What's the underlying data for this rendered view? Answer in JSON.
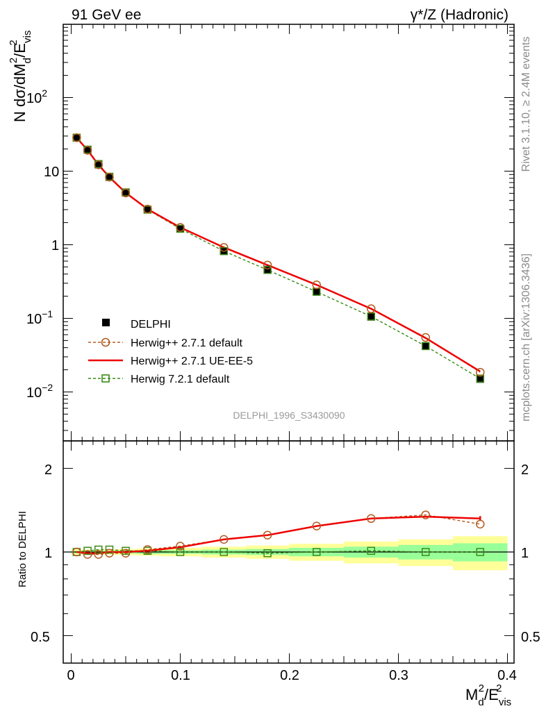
{
  "header": {
    "left": "91 GeV ee",
    "right_main": "γ*/Z (Hadronic)"
  },
  "side_text": {
    "rivet": "Rivet 3.1.10, ≥ 2.4M events",
    "mcplots": "mcplots.cern.ch [arXiv:1306.3436]"
  },
  "analysis_id": "DELPHI_1996_S3430090",
  "axes": {
    "ylabel_main": "N dσ/dM_d^2/E_vis^2",
    "ylabel_ratio": "Ratio to DELPHI",
    "xlabel": "M_d^2/E_vis^2",
    "x_ticks": [
      "0",
      "0.1",
      "0.2",
      "0.3",
      "0.4"
    ],
    "y_ticks_main": [
      "10^-2",
      "10^-1",
      "1",
      "10",
      "10^2"
    ],
    "y_ticks_ratio": [
      "0.5",
      "1",
      "2"
    ]
  },
  "legend": {
    "data": "DELPHI",
    "s1": "Herwig++ 2.7.1 default",
    "s2": "Herwig++ 2.7.1 UE-EE-5",
    "s3": "Herwig 7.2.1 default"
  },
  "colors": {
    "data": "#000000",
    "s1": "#b35a1f",
    "s2": "#ee0000",
    "s3": "#3a8a14",
    "band_inner": "#99ff99",
    "band_outer": "#ffff99"
  },
  "chart_data": [
    {
      "type": "scatter",
      "panel": "main",
      "log_y": true,
      "xlim": [
        -0.01,
        0.4
      ],
      "ylim": [
        0.0025,
        1000
      ],
      "x": [
        0.005,
        0.015,
        0.025,
        0.035,
        0.05,
        0.07,
        0.1,
        0.14,
        0.18,
        0.225,
        0.275,
        0.325,
        0.375
      ],
      "x_bin_edges": [
        0.0,
        0.01,
        0.02,
        0.03,
        0.04,
        0.06,
        0.08,
        0.12,
        0.16,
        0.2,
        0.25,
        0.3,
        0.35,
        0.4
      ],
      "series": [
        {
          "name": "DELPHI",
          "values": [
            28.5,
            19.5,
            12.3,
            8.3,
            5.1,
            3.0,
            1.65,
            0.82,
            0.46,
            0.23,
            0.105,
            0.042,
            0.015
          ]
        },
        {
          "name": "Herwig++ 2.7.1 default",
          "values": [
            28.5,
            19.2,
            12.2,
            8.3,
            5.05,
            3.05,
            1.72,
            0.92,
            0.53,
            0.285,
            0.135,
            0.055,
            0.0185
          ]
        },
        {
          "name": "Herwig++ 2.7.1 UE-EE-5",
          "values": [
            28.5,
            19.3,
            12.2,
            8.3,
            5.08,
            3.05,
            1.72,
            0.92,
            0.53,
            0.285,
            0.135,
            0.054,
            0.019
          ]
        },
        {
          "name": "Herwig 7.2.1 default",
          "values": [
            28.5,
            19.6,
            12.5,
            8.4,
            5.15,
            3.0,
            1.65,
            0.82,
            0.455,
            0.23,
            0.106,
            0.042,
            0.0152
          ]
        }
      ]
    },
    {
      "type": "line",
      "panel": "ratio",
      "xlim": [
        -0.01,
        0.4
      ],
      "ylim": [
        0.4,
        2.4
      ],
      "x": [
        0.005,
        0.015,
        0.025,
        0.035,
        0.05,
        0.07,
        0.1,
        0.14,
        0.18,
        0.225,
        0.275,
        0.325,
        0.375
      ],
      "uncertainty_band": {
        "x_bin_edges": [
          0.0,
          0.01,
          0.02,
          0.03,
          0.04,
          0.06,
          0.08,
          0.12,
          0.16,
          0.2,
          0.25,
          0.3,
          0.35,
          0.4
        ],
        "inner": [
          0.01,
          0.01,
          0.01,
          0.01,
          0.012,
          0.015,
          0.015,
          0.02,
          0.025,
          0.035,
          0.045,
          0.06,
          0.075
        ],
        "outer": [
          0.02,
          0.02,
          0.02,
          0.02,
          0.025,
          0.03,
          0.035,
          0.045,
          0.055,
          0.07,
          0.09,
          0.11,
          0.14
        ]
      },
      "series": [
        {
          "name": "Herwig++ 2.7.1 default",
          "values": [
            1.0,
            0.98,
            0.98,
            0.99,
            0.99,
            1.02,
            1.05,
            1.11,
            1.15,
            1.24,
            1.32,
            1.36,
            1.26
          ]
        },
        {
          "name": "Herwig++ 2.7.1 UE-EE-5",
          "values": [
            1.0,
            0.99,
            0.99,
            1.0,
            1.0,
            1.01,
            1.04,
            1.11,
            1.15,
            1.24,
            1.32,
            1.34,
            1.32
          ]
        },
        {
          "name": "Herwig 7.2.1 default",
          "values": [
            1.0,
            1.01,
            1.02,
            1.02,
            1.01,
            1.01,
            1.0,
            1.0,
            0.99,
            1.0,
            1.01,
            1.0,
            1.0
          ]
        }
      ]
    }
  ]
}
